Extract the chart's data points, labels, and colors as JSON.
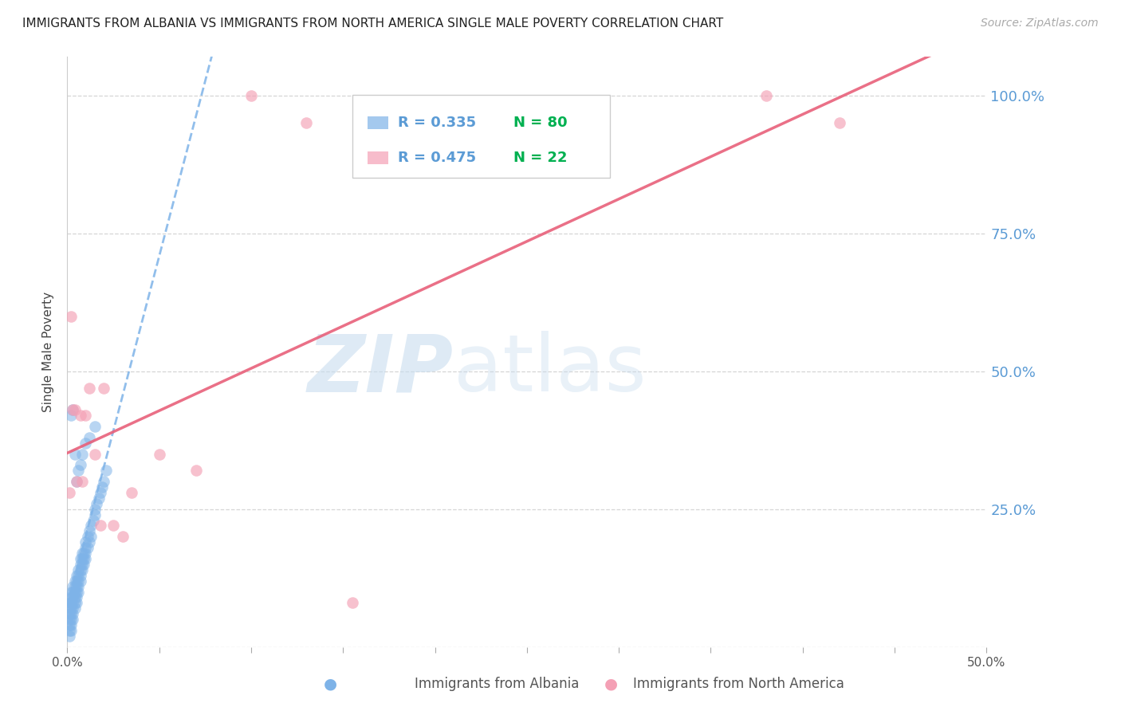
{
  "title": "IMMIGRANTS FROM ALBANIA VS IMMIGRANTS FROM NORTH AMERICA SINGLE MALE POVERTY CORRELATION CHART",
  "source": "Source: ZipAtlas.com",
  "ylabel": "Single Male Poverty",
  "xlabel_albania": "Immigrants from Albania",
  "xlabel_north_america": "Immigrants from North America",
  "r_albania": "0.335",
  "n_albania": "80",
  "r_na": "0.475",
  "n_na": "22",
  "xlim": [
    0.0,
    0.5
  ],
  "ylim": [
    0.0,
    1.07
  ],
  "yticks": [
    0.0,
    0.25,
    0.5,
    0.75,
    1.0
  ],
  "ytick_labels": [
    "",
    "25.0%",
    "50.0%",
    "75.0%",
    "100.0%"
  ],
  "xticks": [
    0.0,
    0.05,
    0.1,
    0.15,
    0.2,
    0.25,
    0.3,
    0.35,
    0.4,
    0.45,
    0.5
  ],
  "xtick_labels": [
    "0.0%",
    "",
    "",
    "",
    "",
    "",
    "",
    "",
    "",
    "",
    "50.0%"
  ],
  "color_albania": "#7EB3E8",
  "color_na": "#F4A0B5",
  "trendline_albania_color": "#7EB3E8",
  "trendline_na_color": "#E8607A",
  "r_color": "#5B9BD5",
  "n_color": "#00B050",
  "watermark_zip_color": "#C8DDEF",
  "watermark_atlas_color": "#C8DDEF",
  "albania_x": [
    0.001,
    0.001,
    0.001,
    0.001,
    0.001,
    0.001,
    0.001,
    0.002,
    0.002,
    0.002,
    0.002,
    0.002,
    0.002,
    0.002,
    0.002,
    0.003,
    0.003,
    0.003,
    0.003,
    0.003,
    0.003,
    0.003,
    0.004,
    0.004,
    0.004,
    0.004,
    0.004,
    0.004,
    0.005,
    0.005,
    0.005,
    0.005,
    0.005,
    0.005,
    0.006,
    0.006,
    0.006,
    0.006,
    0.006,
    0.007,
    0.007,
    0.007,
    0.007,
    0.007,
    0.008,
    0.008,
    0.008,
    0.008,
    0.009,
    0.009,
    0.009,
    0.01,
    0.01,
    0.01,
    0.01,
    0.011,
    0.011,
    0.012,
    0.012,
    0.013,
    0.013,
    0.014,
    0.015,
    0.015,
    0.016,
    0.017,
    0.018,
    0.019,
    0.02,
    0.021,
    0.002,
    0.003,
    0.004,
    0.005,
    0.006,
    0.007,
    0.008,
    0.01,
    0.012,
    0.015
  ],
  "albania_y": [
    0.02,
    0.03,
    0.04,
    0.05,
    0.06,
    0.07,
    0.08,
    0.03,
    0.04,
    0.05,
    0.06,
    0.07,
    0.08,
    0.09,
    0.1,
    0.05,
    0.06,
    0.07,
    0.08,
    0.09,
    0.1,
    0.11,
    0.07,
    0.08,
    0.09,
    0.1,
    0.11,
    0.12,
    0.08,
    0.09,
    0.1,
    0.11,
    0.12,
    0.13,
    0.1,
    0.11,
    0.12,
    0.13,
    0.14,
    0.12,
    0.13,
    0.14,
    0.15,
    0.16,
    0.14,
    0.15,
    0.16,
    0.17,
    0.15,
    0.16,
    0.17,
    0.16,
    0.17,
    0.18,
    0.19,
    0.18,
    0.2,
    0.19,
    0.21,
    0.2,
    0.22,
    0.23,
    0.24,
    0.25,
    0.26,
    0.27,
    0.28,
    0.29,
    0.3,
    0.32,
    0.42,
    0.43,
    0.35,
    0.3,
    0.32,
    0.33,
    0.35,
    0.37,
    0.38,
    0.4
  ],
  "na_x": [
    0.001,
    0.002,
    0.003,
    0.004,
    0.005,
    0.007,
    0.008,
    0.01,
    0.012,
    0.015,
    0.018,
    0.02,
    0.025,
    0.03,
    0.035,
    0.05,
    0.07,
    0.1,
    0.13,
    0.155,
    0.38,
    0.42
  ],
  "na_y": [
    0.28,
    0.6,
    0.43,
    0.43,
    0.3,
    0.42,
    0.3,
    0.42,
    0.47,
    0.35,
    0.22,
    0.47,
    0.22,
    0.2,
    0.28,
    0.35,
    0.32,
    1.0,
    0.95,
    0.08,
    1.0,
    0.95
  ]
}
